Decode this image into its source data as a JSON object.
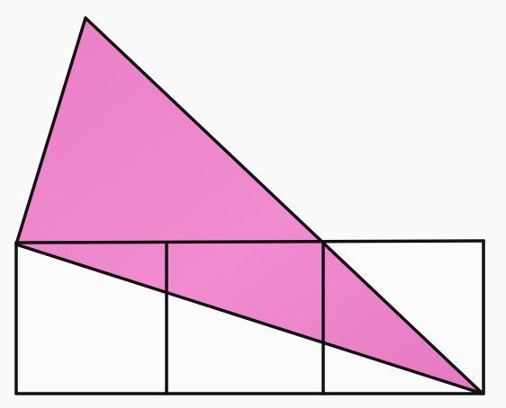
{
  "diagram": {
    "description_free": true,
    "colors": {
      "background": "#fafafa",
      "paper_shadow": "#eeeeee",
      "triangle_fill": "#e97fc4",
      "triangle_fill_light": "#f29ad4",
      "stroke": "#111111",
      "square_fill": "#fbfbfb"
    },
    "grid": {
      "rows": 1,
      "columns": 3,
      "squares": [
        "square-1",
        "square-2",
        "square-3"
      ]
    }
  }
}
